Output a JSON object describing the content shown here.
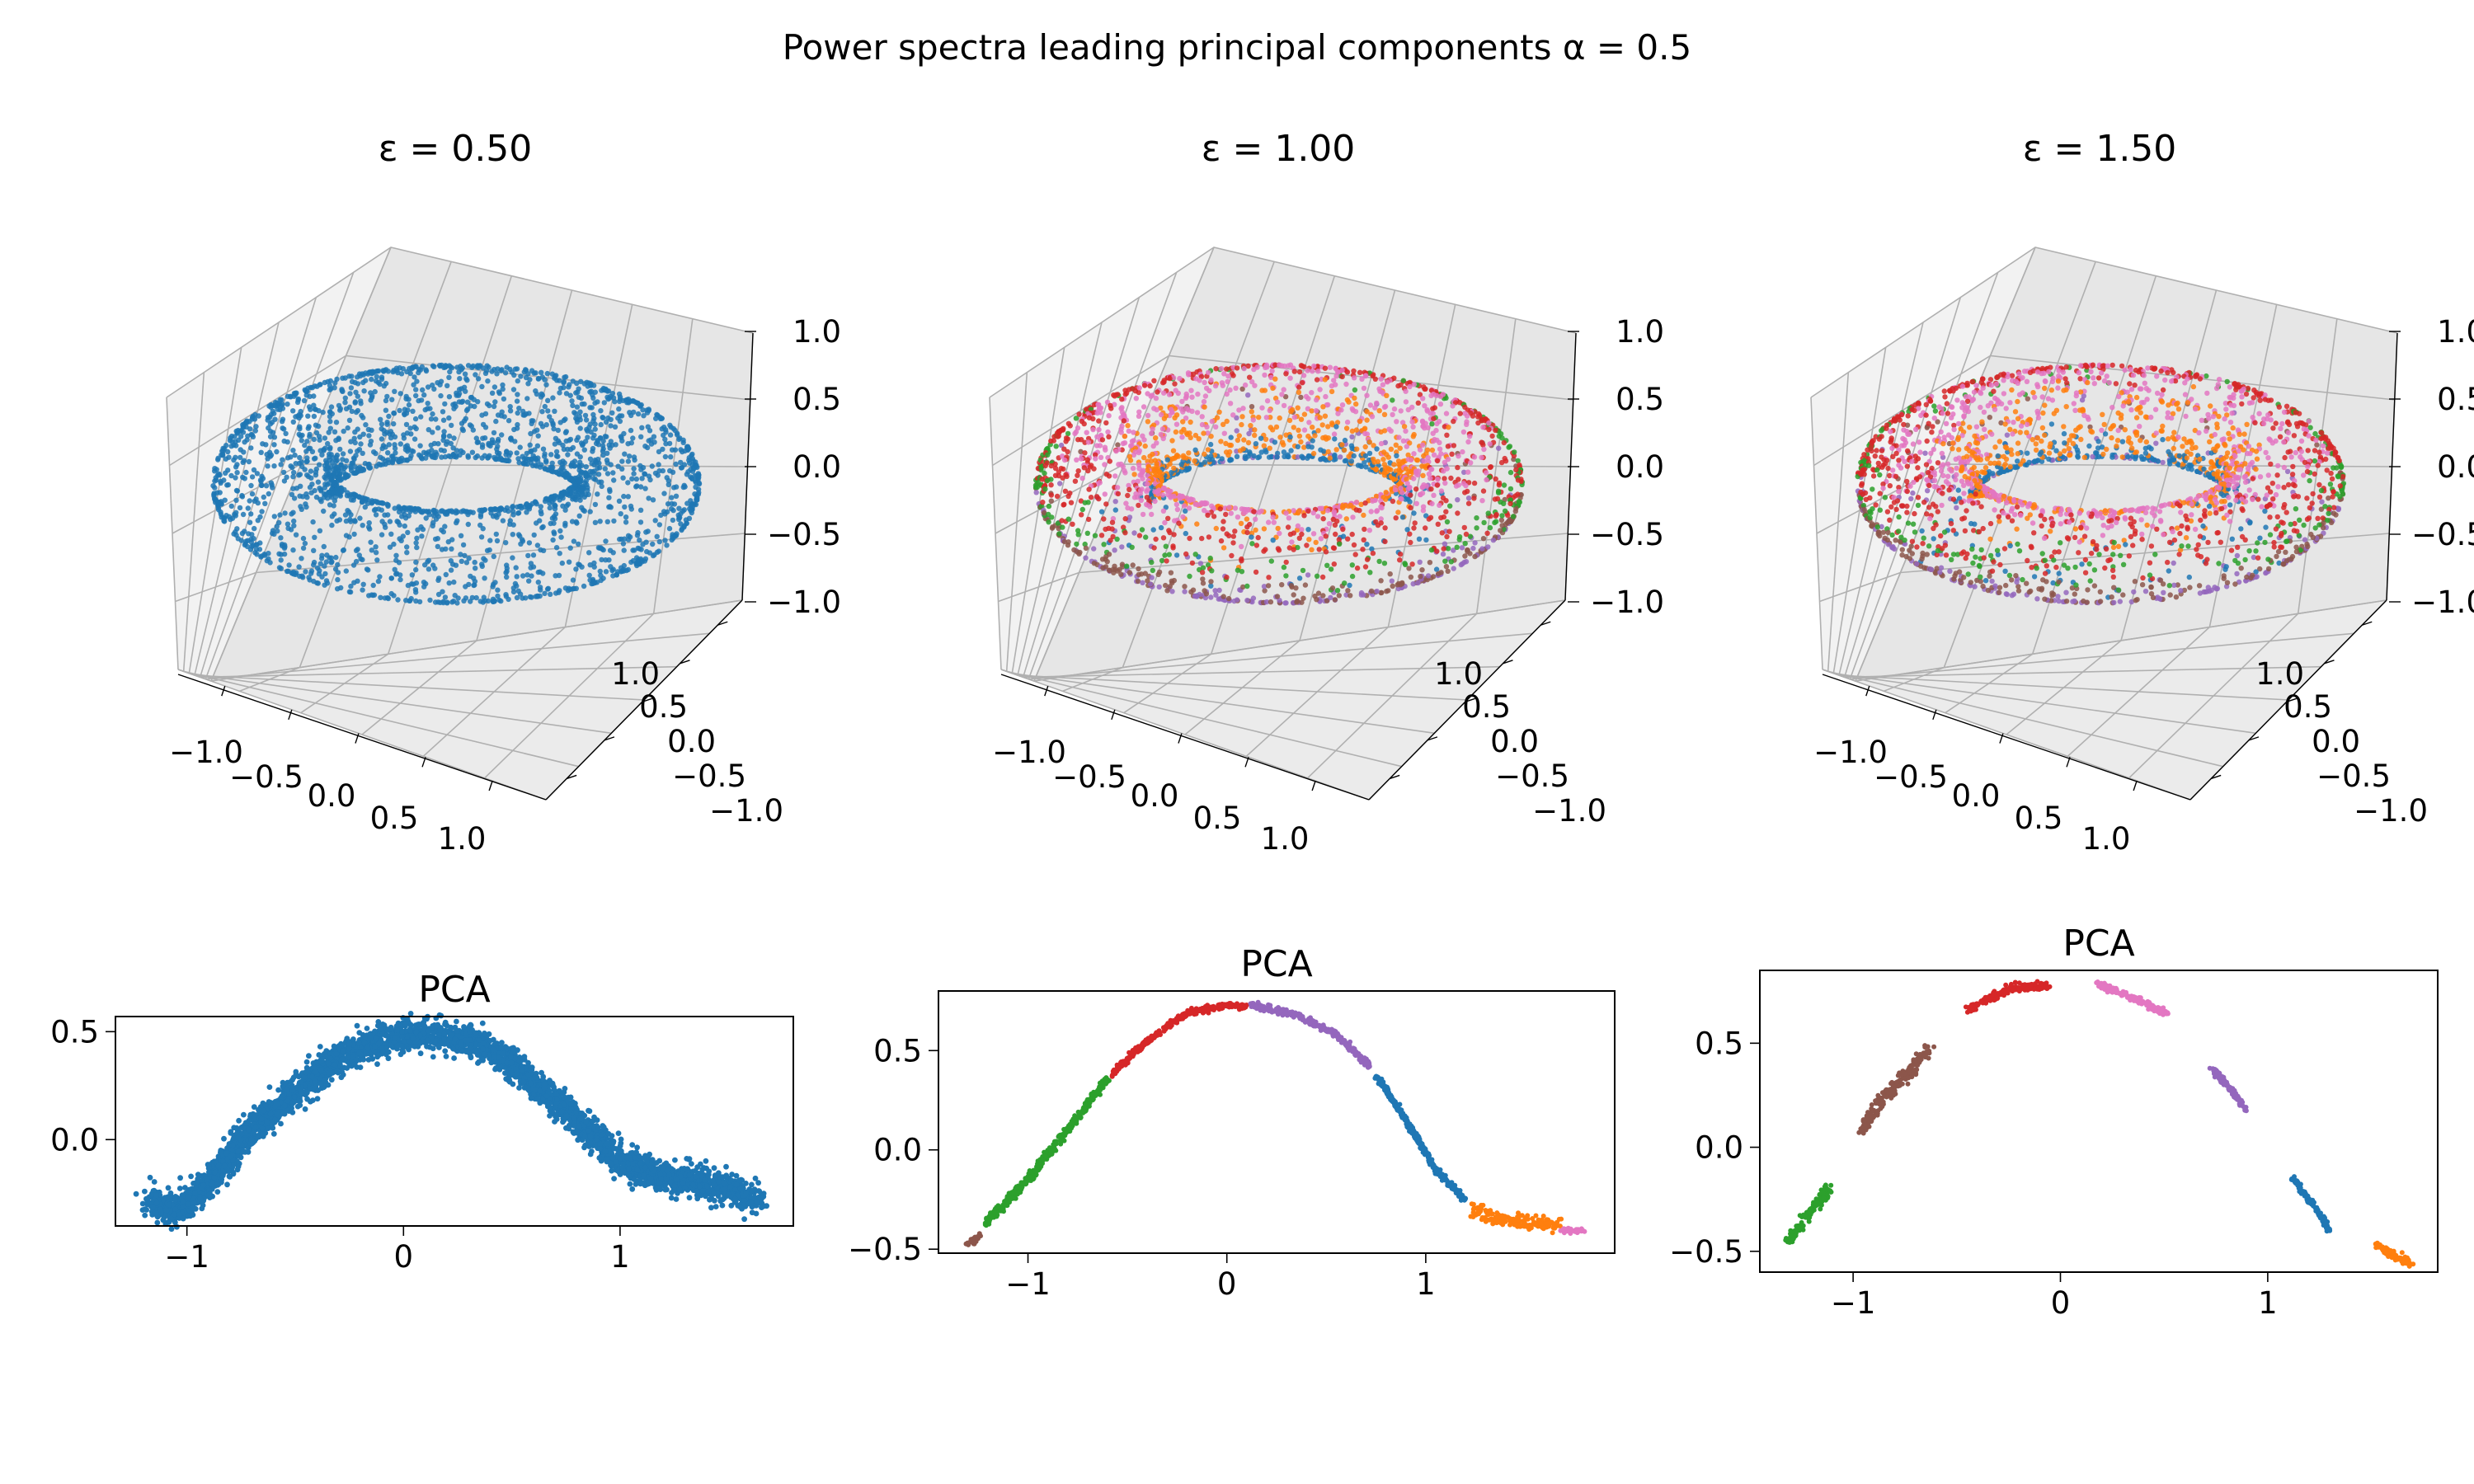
{
  "figure": {
    "suptitle": "Power spectra leading principal components α = 0.5"
  },
  "colors": {
    "tab10": [
      "#1f77b4",
      "#ff7f0e",
      "#2ca02c",
      "#d62728",
      "#9467bd",
      "#8c564b",
      "#e377c2"
    ],
    "pane": "#f2f2f2",
    "grid": "#b0b0b0"
  },
  "chart_data": [
    {
      "type": "scatter",
      "kind": "3d-torus",
      "title": "ε = 0.50",
      "n_clusters": 1,
      "xlim": [
        -1.25,
        1.25
      ],
      "ylim": [
        -1.25,
        1.25
      ],
      "zlim": [
        -1.0,
        1.0
      ],
      "xticks": [
        "−1.0",
        "−0.5",
        "0.0",
        "0.5",
        "1.0"
      ],
      "yticks": [
        "−1.0",
        "−0.5",
        "0.0",
        "0.5",
        "1.0"
      ],
      "zticks": [
        "−1.0",
        "−0.5",
        "0.0",
        "0.5",
        "1.0"
      ],
      "torus": {
        "major_radius": 0.75,
        "minor_radius": 0.25
      }
    },
    {
      "type": "scatter",
      "kind": "3d-torus",
      "title": "ε = 1.00",
      "n_clusters": 7,
      "xlim": [
        -1.25,
        1.25
      ],
      "ylim": [
        -1.25,
        1.25
      ],
      "zlim": [
        -1.0,
        1.0
      ],
      "xticks": [
        "−1.0",
        "−0.5",
        "0.0",
        "0.5",
        "1.0"
      ],
      "yticks": [
        "−1.0",
        "−0.5",
        "0.0",
        "0.5",
        "1.0"
      ],
      "zticks": [
        "−1.0",
        "−0.5",
        "0.0",
        "0.5",
        "1.0"
      ],
      "torus": {
        "major_radius": 0.75,
        "minor_radius": 0.25
      }
    },
    {
      "type": "scatter",
      "kind": "3d-torus",
      "title": "ε = 1.50",
      "n_clusters": 7,
      "xlim": [
        -1.25,
        1.25
      ],
      "ylim": [
        -1.25,
        1.25
      ],
      "zlim": [
        -1.0,
        1.0
      ],
      "xticks": [
        "−1.0",
        "−0.5",
        "0.0",
        "0.5",
        "1.0"
      ],
      "yticks": [
        "−1.0",
        "−0.5",
        "0.0",
        "0.5",
        "1.0"
      ],
      "zticks": [
        "−1.0",
        "−0.5",
        "0.0",
        "0.5",
        "1.0"
      ],
      "torus": {
        "major_radius": 0.75,
        "minor_radius": 0.25
      }
    },
    {
      "type": "scatter",
      "kind": "2d-pca",
      "title": "PCA",
      "xlim": [
        -1.33,
        1.8
      ],
      "ylim": [
        -0.4,
        0.57
      ],
      "xticks": [
        {
          "v": -1,
          "label": "−1"
        },
        {
          "v": 0,
          "label": "0"
        },
        {
          "v": 1,
          "label": "1"
        }
      ],
      "yticks": [
        {
          "v": 0.0,
          "label": "0.0"
        },
        {
          "v": 0.5,
          "label": "0.5"
        }
      ],
      "series": [
        {
          "color_index": 0,
          "noise": 0.035,
          "curve": [
            [
              -1.18,
              -0.29
            ],
            [
              -1.05,
              -0.33
            ],
            [
              -0.9,
              -0.2
            ],
            [
              -0.7,
              0.05
            ],
            [
              -0.5,
              0.22
            ],
            [
              -0.3,
              0.38
            ],
            [
              -0.1,
              0.46
            ],
            [
              0.1,
              0.49
            ],
            [
              0.3,
              0.46
            ],
            [
              0.5,
              0.35
            ],
            [
              0.7,
              0.18
            ],
            [
              0.9,
              0.0
            ],
            [
              1.0,
              -0.1
            ],
            [
              1.2,
              -0.17
            ],
            [
              1.4,
              -0.2
            ],
            [
              1.55,
              -0.25
            ],
            [
              1.65,
              -0.29
            ]
          ]
        }
      ]
    },
    {
      "type": "scatter",
      "kind": "2d-pca",
      "title": "PCA",
      "xlim": [
        -1.45,
        1.95
      ],
      "ylim": [
        -0.52,
        0.8
      ],
      "xticks": [
        {
          "v": -1,
          "label": "−1"
        },
        {
          "v": 0,
          "label": "0"
        },
        {
          "v": 1,
          "label": "1"
        }
      ],
      "yticks": [
        {
          "v": -0.5,
          "label": "−0.5"
        },
        {
          "v": 0.0,
          "label": "0.0"
        },
        {
          "v": 0.5,
          "label": "0.5"
        }
      ],
      "series": [
        {
          "color_index": 5,
          "noise": 0.01,
          "curve": [
            [
              -1.3,
              -0.47
            ],
            [
              -1.24,
              -0.44
            ]
          ]
        },
        {
          "color_index": 2,
          "noise": 0.012,
          "curve": [
            [
              -1.22,
              -0.38
            ],
            [
              -1.0,
              -0.15
            ],
            [
              -0.8,
              0.1
            ],
            [
              -0.6,
              0.36
            ]
          ]
        },
        {
          "color_index": 3,
          "noise": 0.008,
          "curve": [
            [
              -0.58,
              0.38
            ],
            [
              -0.4,
              0.55
            ],
            [
              -0.2,
              0.69
            ],
            [
              0.0,
              0.73
            ],
            [
              0.1,
              0.72
            ]
          ]
        },
        {
          "color_index": 4,
          "noise": 0.008,
          "curve": [
            [
              0.12,
              0.73
            ],
            [
              0.35,
              0.68
            ],
            [
              0.55,
              0.58
            ],
            [
              0.72,
              0.42
            ]
          ]
        },
        {
          "color_index": 0,
          "noise": 0.008,
          "curve": [
            [
              0.75,
              0.38
            ],
            [
              0.9,
              0.15
            ],
            [
              1.05,
              -0.1
            ],
            [
              1.2,
              -0.25
            ]
          ]
        },
        {
          "color_index": 1,
          "noise": 0.018,
          "curve": [
            [
              1.23,
              -0.3
            ],
            [
              1.4,
              -0.36
            ],
            [
              1.55,
              -0.37
            ],
            [
              1.68,
              -0.38
            ]
          ]
        },
        {
          "color_index": 6,
          "noise": 0.006,
          "curve": [
            [
              1.68,
              -0.4
            ],
            [
              1.8,
              -0.41
            ]
          ]
        }
      ]
    },
    {
      "type": "scatter",
      "kind": "2d-pca",
      "title": "PCA",
      "xlim": [
        -1.45,
        1.82
      ],
      "ylim": [
        -0.6,
        0.85
      ],
      "xticks": [
        {
          "v": -1,
          "label": "−1"
        },
        {
          "v": 0,
          "label": "0"
        },
        {
          "v": 1,
          "label": "1"
        }
      ],
      "yticks": [
        {
          "v": -0.5,
          "label": "−0.5"
        },
        {
          "v": 0.0,
          "label": "0.0"
        },
        {
          "v": 0.5,
          "label": "0.5"
        }
      ],
      "series": [
        {
          "color_index": 2,
          "noise": 0.015,
          "curve": [
            [
              -1.32,
              -0.46
            ],
            [
              -1.22,
              -0.33
            ],
            [
              -1.12,
              -0.2
            ]
          ]
        },
        {
          "color_index": 5,
          "noise": 0.018,
          "curve": [
            [
              -0.97,
              0.08
            ],
            [
              -0.8,
              0.3
            ],
            [
              -0.63,
              0.47
            ]
          ]
        },
        {
          "color_index": 3,
          "noise": 0.01,
          "curve": [
            [
              -0.45,
              0.66
            ],
            [
              -0.25,
              0.76
            ],
            [
              -0.05,
              0.78
            ]
          ]
        },
        {
          "color_index": 6,
          "noise": 0.008,
          "curve": [
            [
              0.18,
              0.78
            ],
            [
              0.35,
              0.72
            ],
            [
              0.52,
              0.64
            ]
          ]
        },
        {
          "color_index": 4,
          "noise": 0.008,
          "curve": [
            [
              0.73,
              0.38
            ],
            [
              0.82,
              0.28
            ],
            [
              0.9,
              0.17
            ]
          ]
        },
        {
          "color_index": 0,
          "noise": 0.008,
          "curve": [
            [
              1.12,
              -0.15
            ],
            [
              1.22,
              -0.28
            ],
            [
              1.3,
              -0.4
            ]
          ]
        },
        {
          "color_index": 1,
          "noise": 0.01,
          "curve": [
            [
              1.52,
              -0.47
            ],
            [
              1.6,
              -0.52
            ],
            [
              1.7,
              -0.56
            ]
          ]
        }
      ]
    }
  ]
}
